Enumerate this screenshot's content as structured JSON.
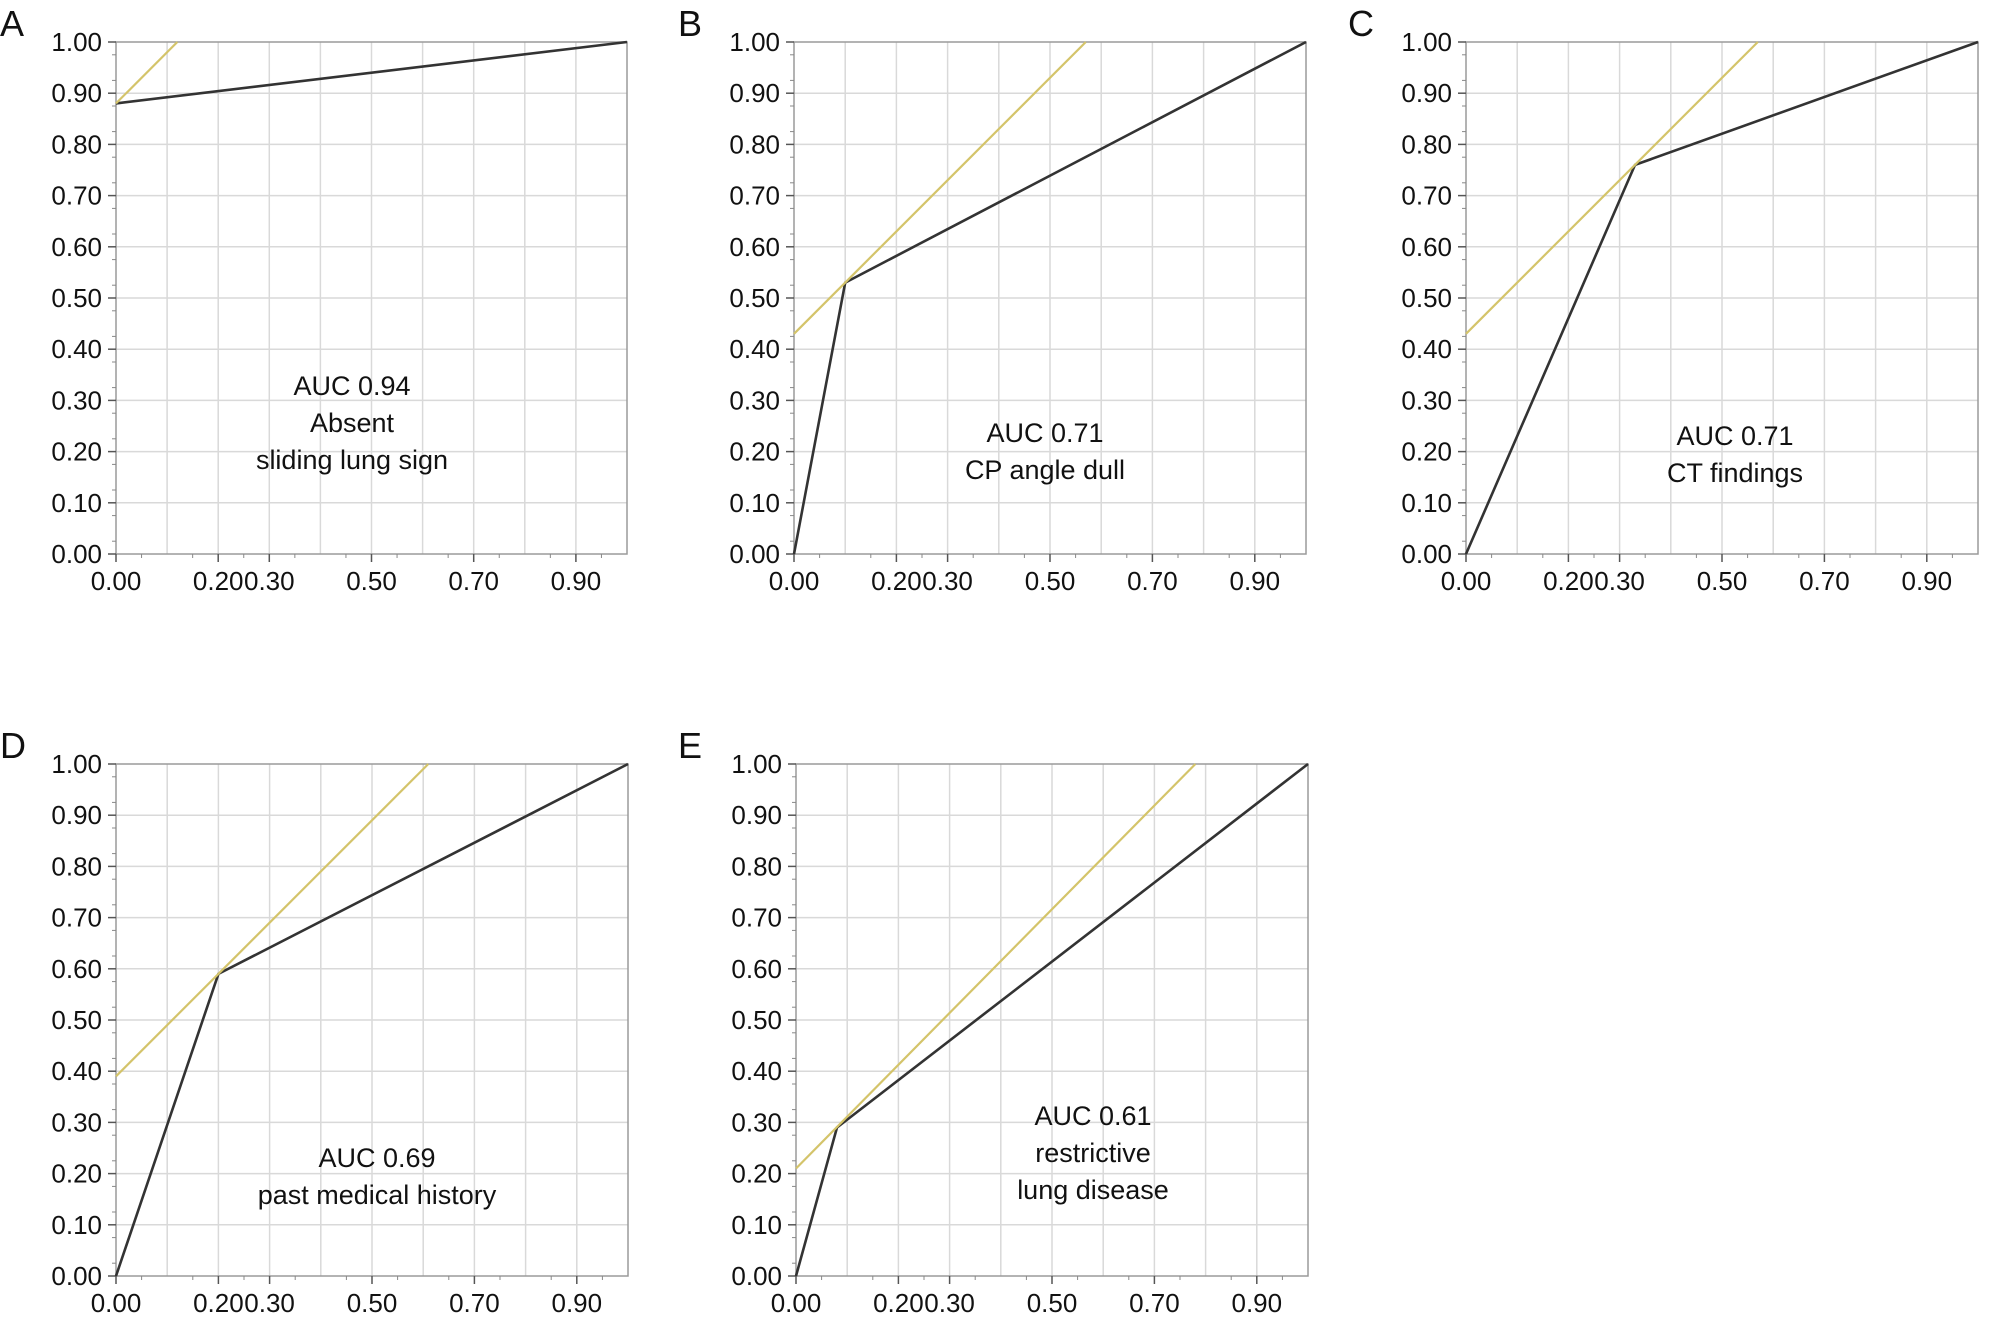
{
  "colors": {
    "roc": "#333333",
    "tangent": "#d4c46a",
    "grid": "#d9d9d9",
    "frame": "#9a9a9a",
    "text": "#111111"
  },
  "chart_data": [
    {
      "type": "line",
      "panel": "A",
      "annotation": [
        "AUC 0.94",
        "Absent",
        "sliding lung sign"
      ],
      "xlim": [
        0,
        1
      ],
      "ylim": [
        0,
        1
      ],
      "x_ticks": [
        "0.00",
        "0.20",
        "0.30",
        "0.50",
        "0.70",
        "0.90"
      ],
      "y_ticks": [
        "0.00",
        "0.10",
        "0.20",
        "0.30",
        "0.40",
        "0.50",
        "0.60",
        "0.70",
        "0.80",
        "0.90",
        "1.00"
      ],
      "grid": true,
      "series": [
        {
          "role": "roc",
          "x": [
            0.0,
            1.0
          ],
          "y": [
            0.88,
            1.0
          ]
        },
        {
          "role": "tangent",
          "x": [
            0.0,
            0.12
          ],
          "y": [
            0.88,
            1.0
          ]
        }
      ]
    },
    {
      "type": "line",
      "panel": "B",
      "annotation": [
        "AUC 0.71",
        "CP angle dull"
      ],
      "xlim": [
        0,
        1
      ],
      "ylim": [
        0,
        1
      ],
      "x_ticks": [
        "0.00",
        "0.20",
        "0.30",
        "0.50",
        "0.70",
        "0.90"
      ],
      "y_ticks": [
        "0.00",
        "0.10",
        "0.20",
        "0.30",
        "0.40",
        "0.50",
        "0.60",
        "0.70",
        "0.80",
        "0.90",
        "1.00"
      ],
      "grid": true,
      "series": [
        {
          "role": "roc",
          "x": [
            0.0,
            0.1,
            1.0
          ],
          "y": [
            0.0,
            0.53,
            1.0
          ]
        },
        {
          "role": "tangent",
          "x": [
            0.0,
            0.57
          ],
          "y": [
            0.43,
            1.0
          ]
        }
      ]
    },
    {
      "type": "line",
      "panel": "C",
      "annotation": [
        "AUC 0.71",
        "CT findings"
      ],
      "xlim": [
        0,
        1
      ],
      "ylim": [
        0,
        1
      ],
      "x_ticks": [
        "0.00",
        "0.20",
        "0.30",
        "0.50",
        "0.70",
        "0.90"
      ],
      "y_ticks": [
        "0.00",
        "0.10",
        "0.20",
        "0.30",
        "0.40",
        "0.50",
        "0.60",
        "0.70",
        "0.80",
        "0.90",
        "1.00"
      ],
      "grid": true,
      "series": [
        {
          "role": "roc",
          "x": [
            0.0,
            0.33,
            1.0
          ],
          "y": [
            0.0,
            0.76,
            1.0
          ]
        },
        {
          "role": "tangent",
          "x": [
            0.0,
            0.57
          ],
          "y": [
            0.43,
            1.0
          ]
        }
      ]
    },
    {
      "type": "line",
      "panel": "D",
      "annotation": [
        "AUC 0.69",
        "past medical history"
      ],
      "xlim": [
        0,
        1
      ],
      "ylim": [
        0,
        1
      ],
      "x_ticks": [
        "0.00",
        "0.20",
        "0.30",
        "0.50",
        "0.70",
        "0.90"
      ],
      "y_ticks": [
        "0.00",
        "0.10",
        "0.20",
        "0.30",
        "0.40",
        "0.50",
        "0.60",
        "0.70",
        "0.80",
        "0.90",
        "1.00"
      ],
      "grid": true,
      "series": [
        {
          "role": "roc",
          "x": [
            0.0,
            0.2,
            1.0
          ],
          "y": [
            0.0,
            0.59,
            1.0
          ]
        },
        {
          "role": "tangent",
          "x": [
            0.0,
            0.61
          ],
          "y": [
            0.39,
            1.0
          ]
        }
      ]
    },
    {
      "type": "line",
      "panel": "E",
      "annotation": [
        "AUC 0.61",
        "restrictive",
        "lung disease"
      ],
      "xlim": [
        0,
        1
      ],
      "ylim": [
        0,
        1
      ],
      "x_ticks": [
        "0.00",
        "0.20",
        "0.30",
        "0.50",
        "0.70",
        "0.90"
      ],
      "y_ticks": [
        "0.00",
        "0.10",
        "0.20",
        "0.30",
        "0.40",
        "0.50",
        "0.60",
        "0.70",
        "0.80",
        "0.90",
        "1.00"
      ],
      "grid": true,
      "series": [
        {
          "role": "roc",
          "x": [
            0.0,
            0.08,
            1.0
          ],
          "y": [
            0.0,
            0.29,
            1.0
          ]
        },
        {
          "role": "tangent",
          "x": [
            0.0,
            0.78
          ],
          "y": [
            0.21,
            1.0
          ]
        }
      ]
    }
  ]
}
